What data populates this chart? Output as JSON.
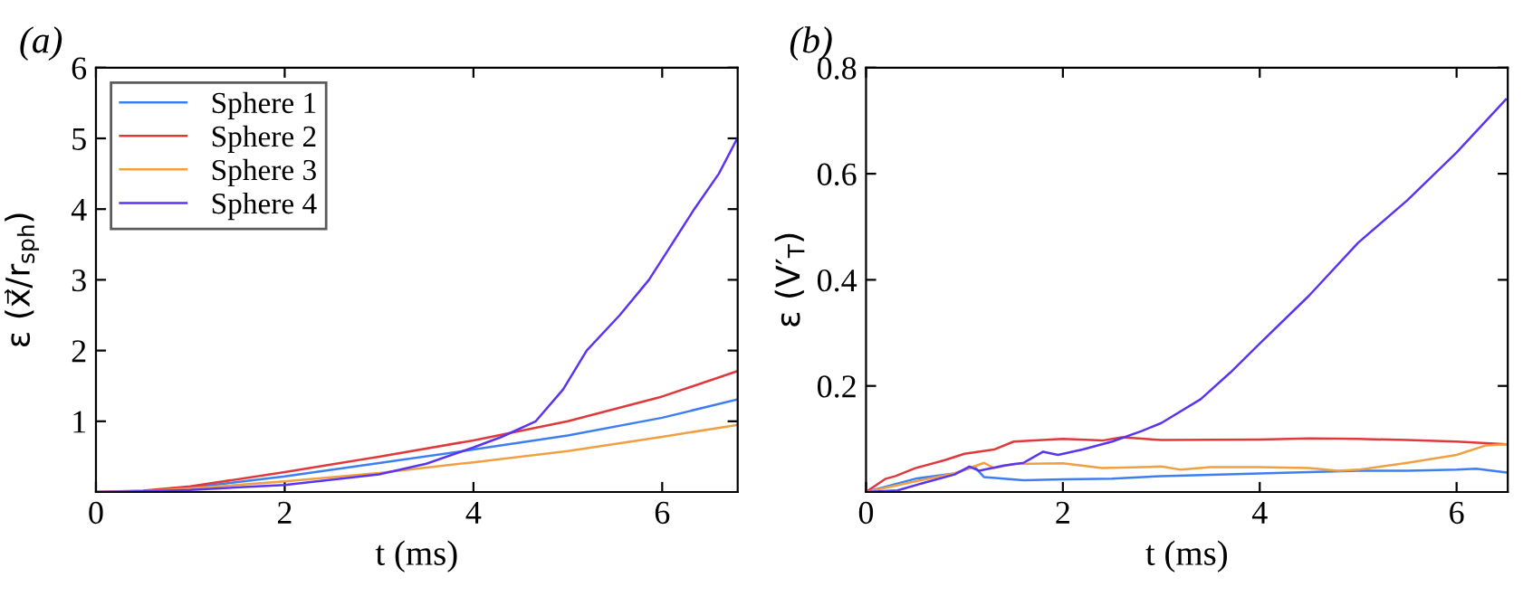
{
  "chart_data": [
    {
      "type": "line",
      "title": "(a)",
      "xlabel": "t (ms)",
      "ylabel": "ε (x⃗/r$_{sph}$)",
      "xlim": [
        0,
        6.8
      ],
      "ylim": [
        0,
        6
      ],
      "xticks": [
        0,
        2,
        4,
        6
      ],
      "yticks": [
        1,
        2,
        3,
        4,
        5,
        6
      ],
      "grid": false,
      "legend": "top left",
      "series": [
        {
          "name": "Sphere 1",
          "color": "#3d7ff2",
          "x": [
            0,
            0.5,
            1,
            2,
            3,
            4,
            5,
            6,
            6.8
          ],
          "values": [
            0,
            0.01,
            0.06,
            0.22,
            0.41,
            0.6,
            0.8,
            1.05,
            1.31
          ]
        },
        {
          "name": "Sphere 2",
          "color": "#e0393b",
          "x": [
            0,
            0.5,
            1,
            2,
            3,
            4,
            5,
            6,
            6.8
          ],
          "values": [
            0,
            0.02,
            0.08,
            0.28,
            0.5,
            0.73,
            1.0,
            1.35,
            1.71
          ]
        },
        {
          "name": "Sphere 3",
          "color": "#f0a040",
          "x": [
            0,
            0.5,
            1,
            2,
            3,
            4,
            5,
            6,
            6.8
          ],
          "values": [
            0,
            0.01,
            0.05,
            0.15,
            0.27,
            0.42,
            0.58,
            0.78,
            0.95
          ]
        },
        {
          "name": "Sphere 4",
          "color": "#5a34f2",
          "x": [
            0,
            0.5,
            1,
            2,
            3,
            3.5,
            4,
            4.3,
            4.66,
            4.95,
            5.2,
            5.55,
            5.86,
            6.1,
            6.34,
            6.6,
            6.8
          ],
          "values": [
            0,
            0.01,
            0.03,
            0.1,
            0.25,
            0.4,
            0.63,
            0.78,
            1,
            1.45,
            2,
            2.5,
            3,
            3.5,
            4,
            4.5,
            5.01
          ]
        }
      ]
    },
    {
      "type": "line",
      "title": "(b)",
      "xlabel": "t (ms)",
      "ylabel": "ε (V′$_{T}$)",
      "xlim": [
        0,
        6.52
      ],
      "ylim": [
        0,
        0.8
      ],
      "xticks": [
        0,
        2,
        4,
        6
      ],
      "yticks": [
        0.2,
        0.4,
        0.6,
        0.8
      ],
      "grid": false,
      "series": [
        {
          "color": "#3d7ff2",
          "x": [
            0,
            0.5,
            0.9,
            1.1,
            1.2,
            1.6,
            2,
            2.5,
            3,
            4,
            5,
            5.5,
            6,
            6.2,
            6.5
          ],
          "values": [
            0,
            0.025,
            0.035,
            0.048,
            0.028,
            0.022,
            0.024,
            0.025,
            0.03,
            0.035,
            0.04,
            0.04,
            0.042,
            0.044,
            0.037
          ]
        },
        {
          "color": "#e0393b",
          "x": [
            0,
            0.2,
            0.3,
            0.5,
            0.8,
            1,
            1.3,
            1.5,
            2,
            2.4,
            2.6,
            3,
            4,
            4.5,
            5,
            5.5,
            6,
            6.5
          ],
          "values": [
            0,
            0.025,
            0.03,
            0.045,
            0.06,
            0.072,
            0.08,
            0.095,
            0.1,
            0.097,
            0.103,
            0.098,
            0.099,
            0.101,
            0.1,
            0.098,
            0.095,
            0.09
          ]
        },
        {
          "color": "#f0a040",
          "x": [
            0,
            0.5,
            0.9,
            1.2,
            1.3,
            1.5,
            2,
            2.4,
            3,
            3.2,
            3.5,
            4,
            4.5,
            4.8,
            5,
            5.5,
            6,
            6.3,
            6.5
          ],
          "values": [
            0,
            0.02,
            0.035,
            0.055,
            0.045,
            0.053,
            0.054,
            0.045,
            0.048,
            0.042,
            0.047,
            0.047,
            0.045,
            0.04,
            0.042,
            0.055,
            0.07,
            0.088,
            0.09
          ]
        },
        {
          "color": "#5a34f2",
          "x": [
            0,
            0.32,
            0.6,
            0.9,
            1.05,
            1.15,
            1.4,
            1.6,
            1.8,
            1.95,
            2.2,
            2.5,
            2.8,
            3,
            3.4,
            3.7,
            4,
            4.5,
            5,
            5.5,
            6,
            6.5
          ],
          "values": [
            0,
            0.003,
            0.018,
            0.033,
            0.048,
            0.04,
            0.05,
            0.055,
            0.076,
            0.07,
            0.08,
            0.095,
            0.115,
            0.13,
            0.175,
            0.225,
            0.28,
            0.37,
            0.47,
            0.55,
            0.64,
            0.74
          ]
        }
      ]
    }
  ]
}
